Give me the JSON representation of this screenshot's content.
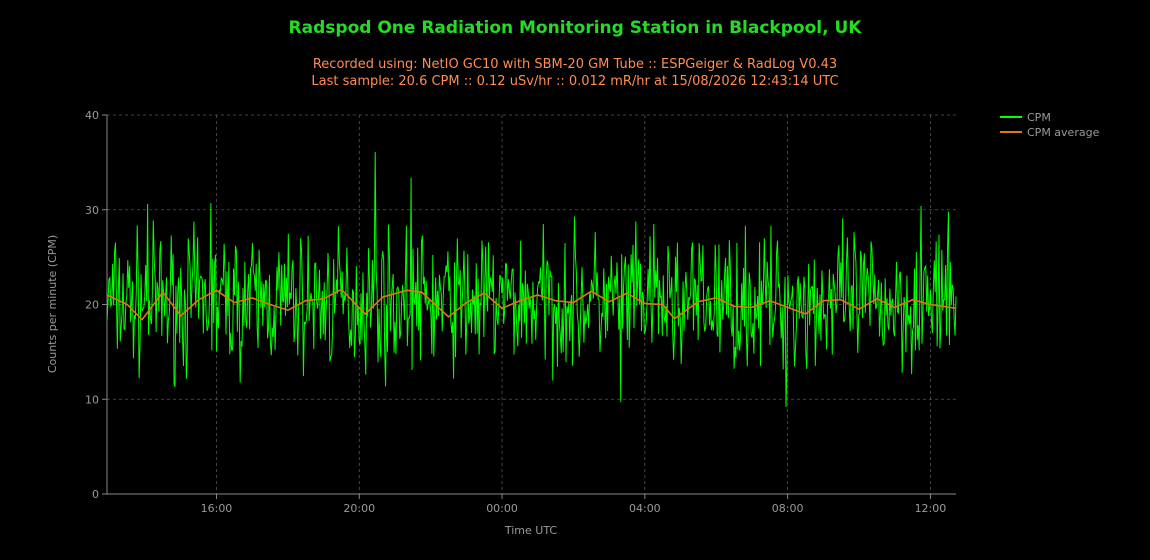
{
  "colors": {
    "background": "#000000",
    "title": "#22dd22",
    "subtitle": "#ff8c50",
    "cpm": "#00ff00",
    "average": "#e07810",
    "grid": "#555555",
    "axis": "#888888",
    "text": "#999999"
  },
  "chart_data": {
    "type": "line",
    "title": "Radspod One Radiation Monitoring Station in Blackpool, UK",
    "subtitle_lines": [
      "Recorded using: NetIO GC10 with SBM-20 GM Tube :: ESPGeiger & RadLog V0.43",
      "Last sample: 20.6 CPM :: 0.12 uSv/hr :: 0.012 mR/hr at 15/08/2026 12:43:14 UTC"
    ],
    "xlabel": "Time UTC",
    "ylabel": "Counts per minute (CPM)",
    "xlim": [
      "12:56",
      "12:43"
    ],
    "ylim": [
      0,
      40
    ],
    "x_ticks": [
      "16:00",
      "20:00",
      "00:00",
      "04:00",
      "08:00",
      "12:00"
    ],
    "y_ticks": [
      "0",
      "10",
      "20",
      "30",
      "40"
    ],
    "grid": true,
    "legend_position": "top-right",
    "series": [
      {
        "name": "CPM",
        "color": "#00ff00",
        "style": "noisy",
        "baseline": 20.3,
        "noise_range": [
          9.2,
          36.1
        ],
        "peaks": [
          {
            "x": "20:27",
            "y": 36.1
          },
          {
            "x": "21:27",
            "y": 33.4
          },
          {
            "x": "14:05",
            "y": 30.6
          },
          {
            "x": "15:50",
            "y": 30.7
          },
          {
            "x": "11:45",
            "y": 30.4
          },
          {
            "x": "03:20",
            "y": 9.7
          },
          {
            "x": "07:58",
            "y": 9.2
          }
        ]
      },
      {
        "name": "CPM average",
        "color": "#e07810",
        "values": [
          {
            "x": "12:56",
            "y": 21.0
          },
          {
            "x": "13:30",
            "y": 20.0
          },
          {
            "x": "13:55",
            "y": 18.4
          },
          {
            "x": "14:30",
            "y": 21.3
          },
          {
            "x": "15:00",
            "y": 18.8
          },
          {
            "x": "15:30",
            "y": 20.5
          },
          {
            "x": "16:00",
            "y": 21.5
          },
          {
            "x": "16:30",
            "y": 20.2
          },
          {
            "x": "17:00",
            "y": 20.7
          },
          {
            "x": "17:30",
            "y": 20.0
          },
          {
            "x": "18:00",
            "y": 19.4
          },
          {
            "x": "18:30",
            "y": 20.4
          },
          {
            "x": "19:00",
            "y": 20.6
          },
          {
            "x": "19:30",
            "y": 21.6
          },
          {
            "x": "20:10",
            "y": 19.0
          },
          {
            "x": "20:40",
            "y": 20.8
          },
          {
            "x": "21:20",
            "y": 21.5
          },
          {
            "x": "21:45",
            "y": 21.3
          },
          {
            "x": "22:30",
            "y": 18.7
          },
          {
            "x": "23:00",
            "y": 20.2
          },
          {
            "x": "23:30",
            "y": 21.2
          },
          {
            "x": "00:00",
            "y": 19.6
          },
          {
            "x": "00:30",
            "y": 20.4
          },
          {
            "x": "01:00",
            "y": 21.0
          },
          {
            "x": "01:30",
            "y": 20.4
          },
          {
            "x": "02:00",
            "y": 20.2
          },
          {
            "x": "02:30",
            "y": 21.4
          },
          {
            "x": "03:00",
            "y": 20.3
          },
          {
            "x": "03:30",
            "y": 21.2
          },
          {
            "x": "04:00",
            "y": 20.1
          },
          {
            "x": "04:30",
            "y": 20.0
          },
          {
            "x": "04:50",
            "y": 18.5
          },
          {
            "x": "05:30",
            "y": 20.3
          },
          {
            "x": "06:00",
            "y": 20.7
          },
          {
            "x": "06:30",
            "y": 19.8
          },
          {
            "x": "07:00",
            "y": 19.7
          },
          {
            "x": "07:30",
            "y": 20.4
          },
          {
            "x": "08:00",
            "y": 19.7
          },
          {
            "x": "08:30",
            "y": 19.0
          },
          {
            "x": "09:00",
            "y": 20.4
          },
          {
            "x": "09:30",
            "y": 20.5
          },
          {
            "x": "10:00",
            "y": 19.5
          },
          {
            "x": "10:30",
            "y": 20.6
          },
          {
            "x": "11:00",
            "y": 19.7
          },
          {
            "x": "11:30",
            "y": 20.5
          },
          {
            "x": "12:00",
            "y": 20.0
          },
          {
            "x": "12:43",
            "y": 19.6
          }
        ]
      }
    ]
  }
}
